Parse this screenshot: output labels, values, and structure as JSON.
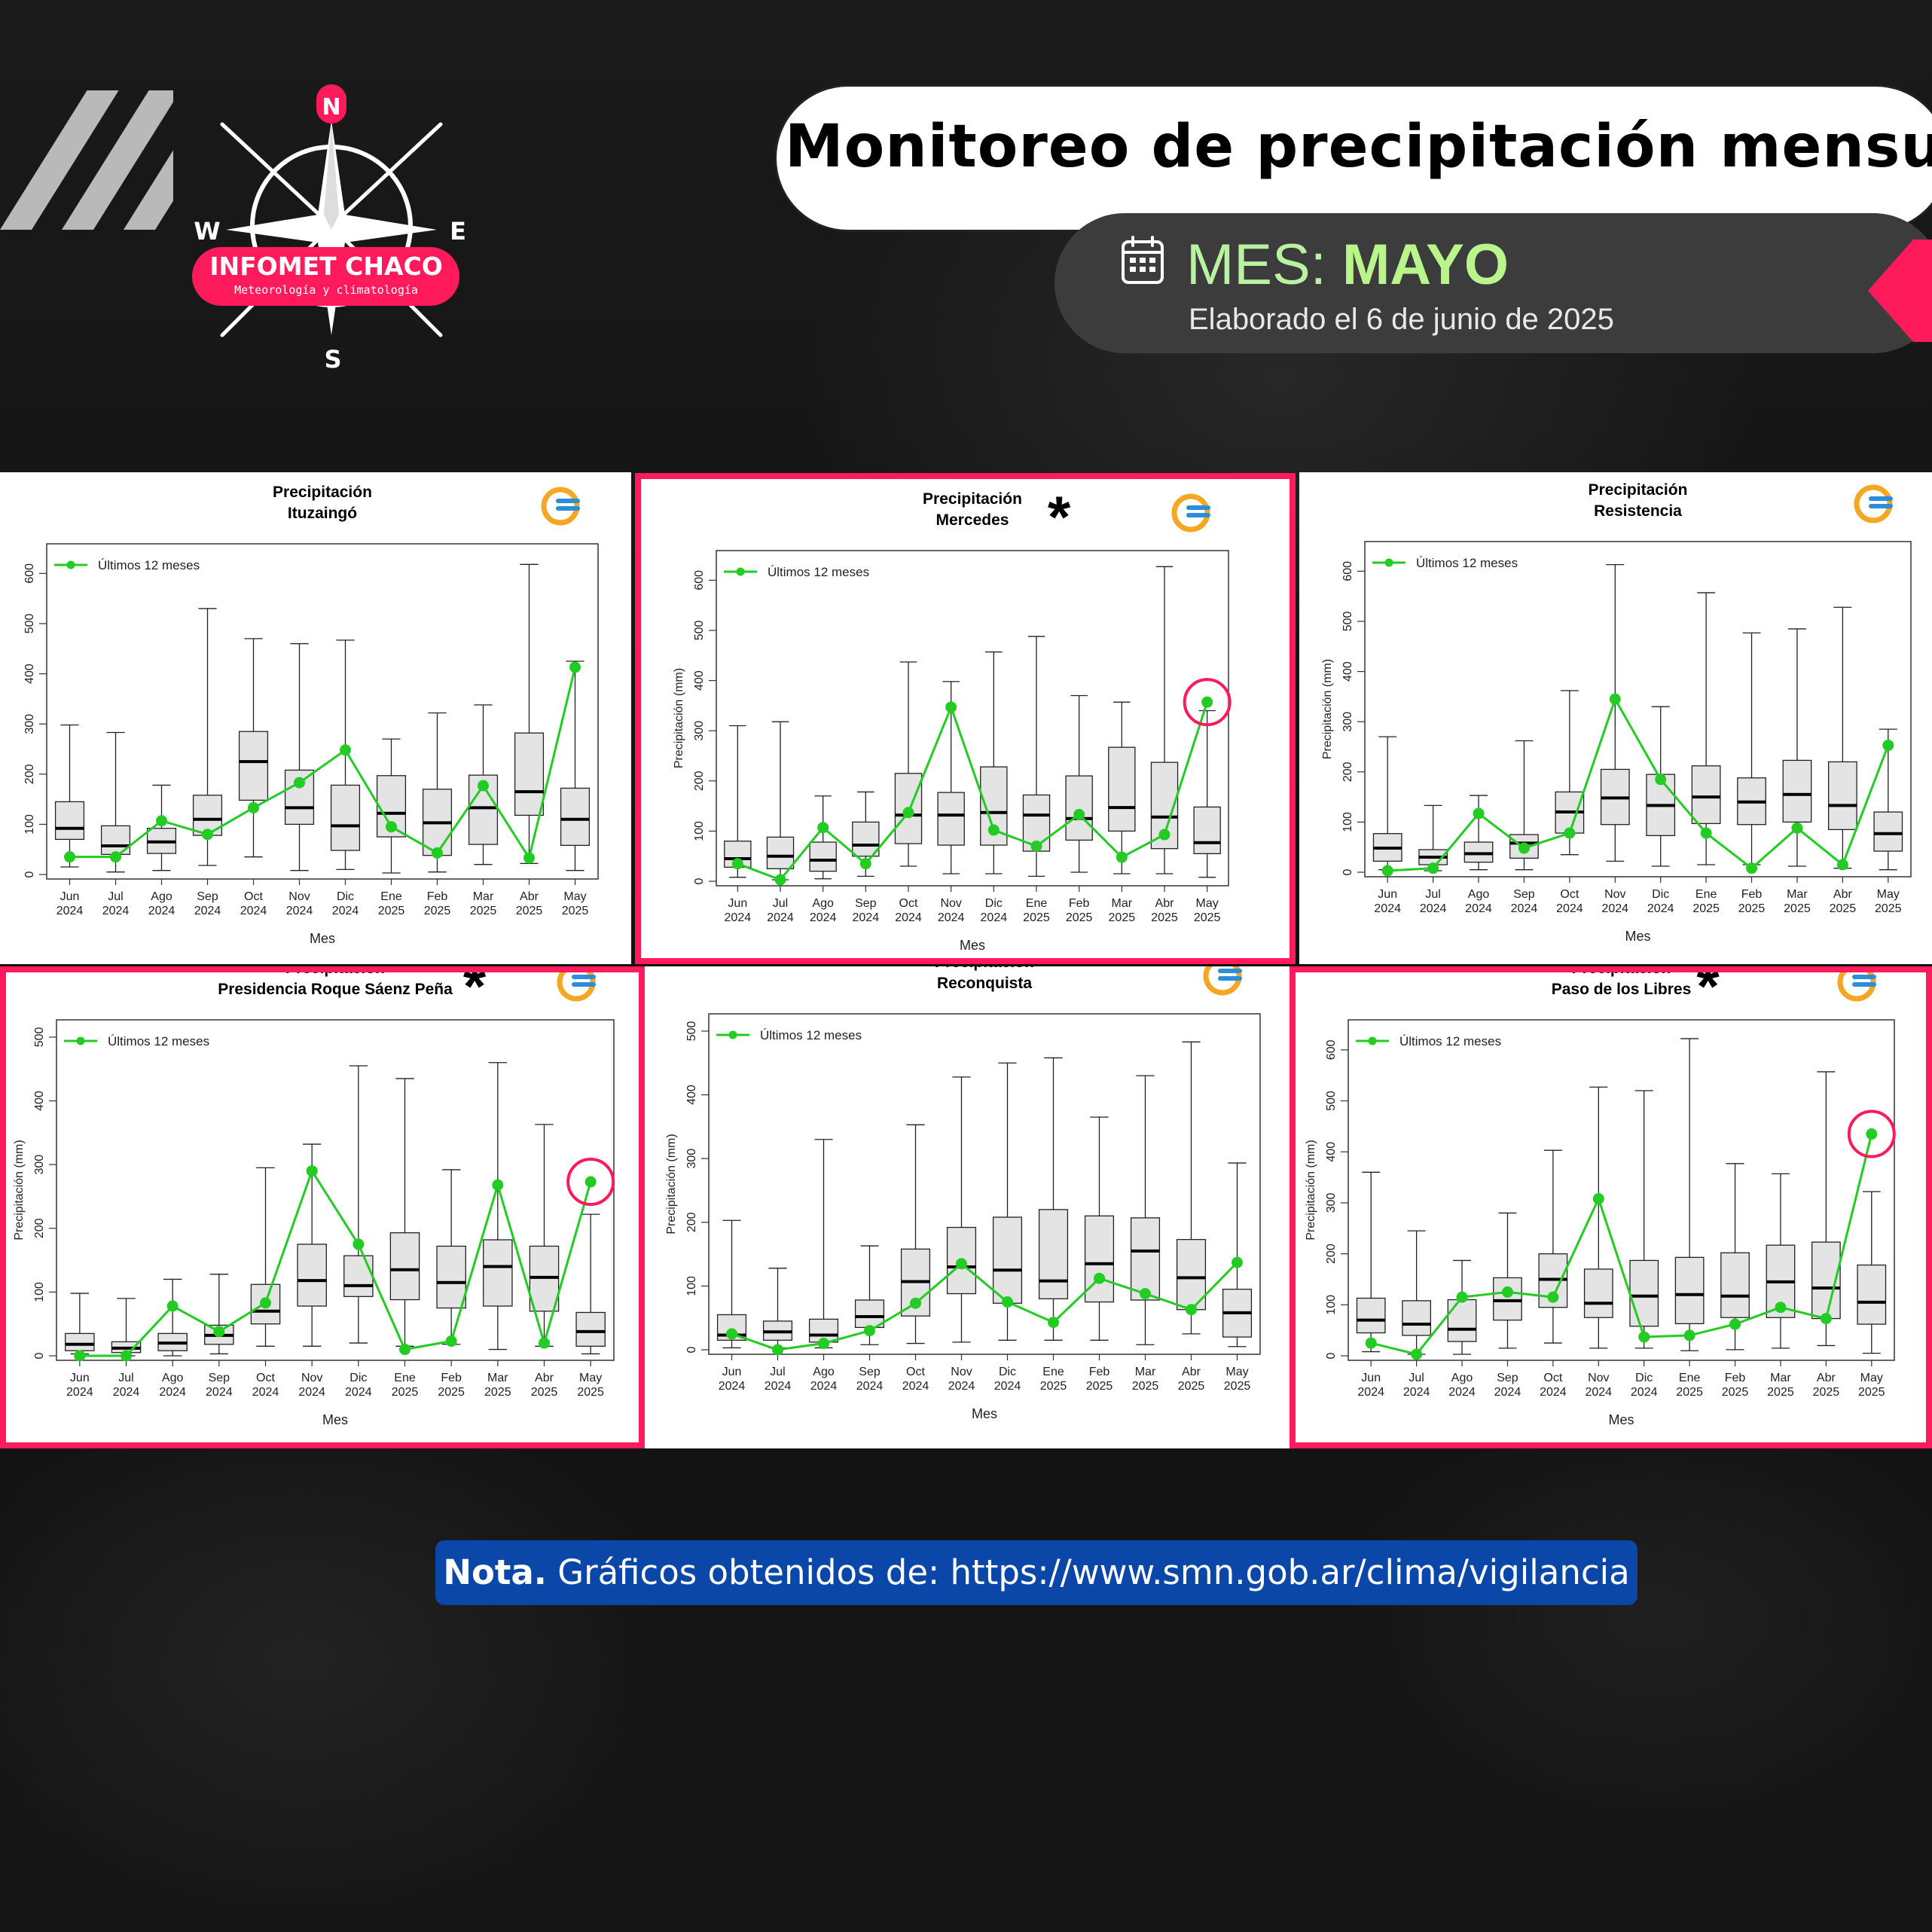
{
  "header": {
    "title": "Monitoreo de precipitación  mensual",
    "mes_prefix": "MES:",
    "mes_value": "MAYO",
    "elaborado": "Elaborado el 6 de junio de  2025"
  },
  "logo": {
    "name": "INFOMET CHACO",
    "subtitle": "Meteorología y climatología",
    "compass": {
      "n": "N",
      "s": "S",
      "e": "E",
      "w": "W"
    }
  },
  "note": {
    "label": "Nota.",
    "text": "Gráficos obtenidos de: https://www.smn.gob.ar/clima/vigilancia"
  },
  "colors": {
    "accent": "#ff1a5c",
    "series": "#22cc22",
    "box_fill": "#e4e4e4",
    "note_bg": "#0a47a8"
  },
  "chart_data": [
    {
      "type": "box",
      "title": "Precipitación",
      "subtitle": "Ituzaingó",
      "xlabel": "Mes",
      "ylabel": "",
      "legend": "Últimos 12 meses",
      "ylim": [
        0,
        650
      ],
      "yticks": [
        0,
        100,
        200,
        300,
        400,
        500,
        600
      ],
      "highlighted": false,
      "asterisk": false,
      "circled_last": false,
      "categories": [
        "Jun\n2024",
        "Jul\n2024",
        "Ago\n2024",
        "Sep\n2024",
        "Oct\n2024",
        "Nov\n2024",
        "Dic\n2024",
        "Ene\n2025",
        "Feb\n2025",
        "Mar\n2025",
        "Abr\n2025",
        "May\n2025"
      ],
      "boxes": [
        {
          "min": 15,
          "q1": 70,
          "median": 92,
          "q3": 145,
          "max": 298
        },
        {
          "min": 5,
          "q1": 40,
          "median": 57,
          "q3": 97,
          "max": 283
        },
        {
          "min": 8,
          "q1": 42,
          "median": 65,
          "q3": 92,
          "max": 178
        },
        {
          "min": 18,
          "q1": 78,
          "median": 110,
          "q3": 158,
          "max": 530
        },
        {
          "min": 35,
          "q1": 148,
          "median": 225,
          "q3": 285,
          "max": 470
        },
        {
          "min": 8,
          "q1": 100,
          "median": 133,
          "q3": 208,
          "max": 460
        },
        {
          "min": 10,
          "q1": 48,
          "median": 97,
          "q3": 178,
          "max": 467
        },
        {
          "min": 3,
          "q1": 75,
          "median": 122,
          "q3": 197,
          "max": 270
        },
        {
          "min": 5,
          "q1": 38,
          "median": 103,
          "q3": 170,
          "max": 322
        },
        {
          "min": 20,
          "q1": 60,
          "median": 133,
          "q3": 198,
          "max": 338
        },
        {
          "min": 22,
          "q1": 118,
          "median": 165,
          "q3": 282,
          "max": 618
        },
        {
          "min": 8,
          "q1": 58,
          "median": 110,
          "q3": 172,
          "max": 425
        }
      ],
      "series": [
        {
          "name": "Últimos 12 meses",
          "values": [
            35,
            35,
            107,
            80,
            133,
            183,
            248,
            95,
            43,
            177,
            33,
            413
          ]
        }
      ]
    },
    {
      "type": "box",
      "title": "Precipitación",
      "subtitle": "Mercedes",
      "xlabel": "Mes",
      "ylabel": "Precipitación (mm)",
      "legend": "Últimos 12 meses",
      "ylim": [
        0,
        650
      ],
      "yticks": [
        0,
        100,
        200,
        300,
        400,
        500,
        600
      ],
      "highlighted": true,
      "asterisk": true,
      "circled_last": true,
      "categories": [
        "Jun\n2024",
        "Jul\n2024",
        "Ago\n2024",
        "Sep\n2024",
        "Oct\n2024",
        "Nov\n2024",
        "Dic\n2024",
        "Ene\n2025",
        "Feb\n2025",
        "Mar\n2025",
        "Abr\n2025",
        "May\n2025"
      ],
      "boxes": [
        {
          "min": 8,
          "q1": 28,
          "median": 45,
          "q3": 80,
          "max": 310
        },
        {
          "min": 3,
          "q1": 25,
          "median": 50,
          "q3": 88,
          "max": 318
        },
        {
          "min": 5,
          "q1": 20,
          "median": 42,
          "q3": 78,
          "max": 170
        },
        {
          "min": 10,
          "q1": 50,
          "median": 72,
          "q3": 118,
          "max": 178
        },
        {
          "min": 30,
          "q1": 75,
          "median": 132,
          "q3": 215,
          "max": 437
        },
        {
          "min": 15,
          "q1": 72,
          "median": 132,
          "q3": 177,
          "max": 398
        },
        {
          "min": 15,
          "q1": 72,
          "median": 137,
          "q3": 228,
          "max": 457
        },
        {
          "min": 10,
          "q1": 60,
          "median": 132,
          "q3": 172,
          "max": 488
        },
        {
          "min": 18,
          "q1": 82,
          "median": 125,
          "q3": 210,
          "max": 370
        },
        {
          "min": 15,
          "q1": 100,
          "median": 147,
          "q3": 267,
          "max": 357
        },
        {
          "min": 15,
          "q1": 65,
          "median": 128,
          "q3": 237,
          "max": 627
        },
        {
          "min": 8,
          "q1": 55,
          "median": 77,
          "q3": 148,
          "max": 340
        }
      ],
      "series": [
        {
          "name": "Últimos 12 meses",
          "values": [
            35,
            3,
            107,
            35,
            137,
            347,
            102,
            70,
            133,
            48,
            93,
            357
          ]
        }
      ]
    },
    {
      "type": "box",
      "title": "Precipitación",
      "subtitle": "Resistencia",
      "xlabel": "Mes",
      "ylabel": "Precipitación (mm)",
      "legend": "Últimos 12 meses",
      "ylim": [
        0,
        650
      ],
      "yticks": [
        0,
        100,
        200,
        300,
        400,
        500,
        600
      ],
      "highlighted": false,
      "asterisk": false,
      "circled_last": false,
      "categories": [
        "Jun\n2024",
        "Jul\n2024",
        "Ago\n2024",
        "Sep\n2024",
        "Oct\n2024",
        "Nov\n2024",
        "Dic\n2024",
        "Ene\n2025",
        "Feb\n2025",
        "Mar\n2025",
        "Abr\n2025",
        "May\n2025"
      ],
      "boxes": [
        {
          "min": 5,
          "q1": 22,
          "median": 48,
          "q3": 77,
          "max": 270
        },
        {
          "min": 3,
          "q1": 15,
          "median": 30,
          "q3": 45,
          "max": 133
        },
        {
          "min": 5,
          "q1": 20,
          "median": 37,
          "q3": 60,
          "max": 153
        },
        {
          "min": 5,
          "q1": 28,
          "median": 58,
          "q3": 75,
          "max": 262
        },
        {
          "min": 35,
          "q1": 78,
          "median": 120,
          "q3": 160,
          "max": 362
        },
        {
          "min": 22,
          "q1": 95,
          "median": 148,
          "q3": 205,
          "max": 613
        },
        {
          "min": 12,
          "q1": 73,
          "median": 133,
          "q3": 195,
          "max": 330
        },
        {
          "min": 15,
          "q1": 97,
          "median": 150,
          "q3": 212,
          "max": 557
        },
        {
          "min": 15,
          "q1": 95,
          "median": 140,
          "q3": 188,
          "max": 477
        },
        {
          "min": 12,
          "q1": 100,
          "median": 155,
          "q3": 223,
          "max": 485
        },
        {
          "min": 8,
          "q1": 85,
          "median": 133,
          "q3": 220,
          "max": 528
        },
        {
          "min": 5,
          "q1": 42,
          "median": 77,
          "q3": 120,
          "max": 285
        }
      ],
      "series": [
        {
          "name": "Últimos 12 meses",
          "values": [
            3,
            8,
            117,
            48,
            78,
            345,
            185,
            78,
            8,
            88,
            15,
            253
          ]
        }
      ]
    },
    {
      "type": "box",
      "title": "Precipitación",
      "subtitle": "Presidencia Roque Sáenz Peña",
      "xlabel": "Mes",
      "ylabel": "Precipitación (mm)",
      "legend": "Últimos 12 meses",
      "ylim": [
        0,
        520
      ],
      "yticks": [
        0,
        100,
        200,
        300,
        400,
        500
      ],
      "highlighted": true,
      "asterisk": true,
      "circled_last": true,
      "categories": [
        "Jun\n2024",
        "Jul\n2024",
        "Ago\n2024",
        "Sep\n2024",
        "Oct\n2024",
        "Nov\n2024",
        "Dic\n2024",
        "Ene\n2025",
        "Feb\n2025",
        "Mar\n2025",
        "Abr\n2025",
        "May\n2025"
      ],
      "boxes": [
        {
          "min": 3,
          "q1": 8,
          "median": 18,
          "q3": 35,
          "max": 98
        },
        {
          "min": 0,
          "q1": 5,
          "median": 12,
          "q3": 22,
          "max": 90
        },
        {
          "min": 0,
          "q1": 8,
          "median": 20,
          "q3": 35,
          "max": 120
        },
        {
          "min": 3,
          "q1": 18,
          "median": 32,
          "q3": 48,
          "max": 128
        },
        {
          "min": 15,
          "q1": 50,
          "median": 70,
          "q3": 112,
          "max": 295
        },
        {
          "min": 15,
          "q1": 78,
          "median": 118,
          "q3": 175,
          "max": 332
        },
        {
          "min": 20,
          "q1": 93,
          "median": 110,
          "q3": 157,
          "max": 455
        },
        {
          "min": 15,
          "q1": 88,
          "median": 135,
          "q3": 193,
          "max": 435
        },
        {
          "min": 18,
          "q1": 75,
          "median": 115,
          "q3": 172,
          "max": 292
        },
        {
          "min": 10,
          "q1": 78,
          "median": 140,
          "q3": 182,
          "max": 460
        },
        {
          "min": 15,
          "q1": 70,
          "median": 123,
          "q3": 172,
          "max": 363
        },
        {
          "min": 3,
          "q1": 15,
          "median": 38,
          "q3": 68,
          "max": 222
        }
      ],
      "series": [
        {
          "name": "Últimos 12 meses",
          "values": [
            0,
            0,
            78,
            38,
            83,
            290,
            175,
            10,
            23,
            268,
            20,
            273
          ]
        }
      ]
    },
    {
      "type": "box",
      "title": "Precipitación",
      "subtitle": "Reconquista",
      "xlabel": "Mes",
      "ylabel": "Precipitación (mm)",
      "legend": "Últimos 12 meses",
      "ylim": [
        0,
        520
      ],
      "yticks": [
        0,
        100,
        200,
        300,
        400,
        500
      ],
      "highlighted": false,
      "asterisk": false,
      "circled_last": false,
      "categories": [
        "Jun\n2024",
        "Jul\n2024",
        "Ago\n2024",
        "Sep\n2024",
        "Oct\n2024",
        "Nov\n2024",
        "Dic\n2024",
        "Ene\n2025",
        "Feb\n2025",
        "Mar\n2025",
        "Abr\n2025",
        "May\n2025"
      ],
      "boxes": [
        {
          "min": 3,
          "q1": 15,
          "median": 23,
          "q3": 55,
          "max": 203
        },
        {
          "min": 3,
          "q1": 15,
          "median": 28,
          "q3": 45,
          "max": 128
        },
        {
          "min": 3,
          "q1": 12,
          "median": 23,
          "q3": 48,
          "max": 330
        },
        {
          "min": 8,
          "q1": 35,
          "median": 52,
          "q3": 78,
          "max": 163
        },
        {
          "min": 10,
          "q1": 53,
          "median": 107,
          "q3": 158,
          "max": 353
        },
        {
          "min": 12,
          "q1": 88,
          "median": 130,
          "q3": 192,
          "max": 428
        },
        {
          "min": 15,
          "q1": 73,
          "median": 125,
          "q3": 208,
          "max": 450
        },
        {
          "min": 15,
          "q1": 80,
          "median": 108,
          "q3": 220,
          "max": 458
        },
        {
          "min": 15,
          "q1": 75,
          "median": 135,
          "q3": 210,
          "max": 365
        },
        {
          "min": 8,
          "q1": 78,
          "median": 155,
          "q3": 207,
          "max": 430
        },
        {
          "min": 25,
          "q1": 63,
          "median": 113,
          "q3": 173,
          "max": 483
        },
        {
          "min": 5,
          "q1": 20,
          "median": 58,
          "q3": 95,
          "max": 293
        }
      ],
      "series": [
        {
          "name": "Últimos 12 meses",
          "values": [
            25,
            0,
            10,
            30,
            73,
            135,
            75,
            43,
            112,
            88,
            63,
            137
          ]
        }
      ]
    },
    {
      "type": "box",
      "title": "Precipitación",
      "subtitle": "Paso de los Libres",
      "xlabel": "Mes",
      "ylabel": "Precipitación (mm)",
      "legend": "Últimos 12 meses",
      "ylim": [
        0,
        650
      ],
      "yticks": [
        0,
        100,
        200,
        300,
        400,
        500,
        600
      ],
      "highlighted": true,
      "asterisk": true,
      "circled_last": true,
      "categories": [
        "Jun\n2024",
        "Jul\n2024",
        "Ago\n2024",
        "Sep\n2024",
        "Oct\n2024",
        "Nov\n2024",
        "Dic\n2024",
        "Ene\n2025",
        "Feb\n2025",
        "Mar\n2025",
        "Abr\n2025",
        "May\n2025"
      ],
      "boxes": [
        {
          "min": 8,
          "q1": 45,
          "median": 70,
          "q3": 113,
          "max": 360
        },
        {
          "min": 3,
          "q1": 40,
          "median": 62,
          "q3": 108,
          "max": 245
        },
        {
          "min": 3,
          "q1": 28,
          "median": 52,
          "q3": 110,
          "max": 187
        },
        {
          "min": 15,
          "q1": 70,
          "median": 108,
          "q3": 153,
          "max": 280
        },
        {
          "min": 25,
          "q1": 95,
          "median": 150,
          "q3": 200,
          "max": 403
        },
        {
          "min": 15,
          "q1": 75,
          "median": 103,
          "q3": 170,
          "max": 527
        },
        {
          "min": 15,
          "q1": 58,
          "median": 117,
          "q3": 187,
          "max": 520
        },
        {
          "min": 10,
          "q1": 63,
          "median": 120,
          "q3": 193,
          "max": 622
        },
        {
          "min": 12,
          "q1": 75,
          "median": 117,
          "q3": 202,
          "max": 377
        },
        {
          "min": 15,
          "q1": 75,
          "median": 145,
          "q3": 217,
          "max": 357
        },
        {
          "min": 20,
          "q1": 73,
          "median": 133,
          "q3": 223,
          "max": 557
        },
        {
          "min": 5,
          "q1": 62,
          "median": 105,
          "q3": 178,
          "max": 322
        }
      ],
      "series": [
        {
          "name": "Últimos 12 meses",
          "values": [
            25,
            3,
            115,
            125,
            115,
            308,
            37,
            40,
            62,
            95,
            73,
            435
          ]
        }
      ]
    }
  ]
}
